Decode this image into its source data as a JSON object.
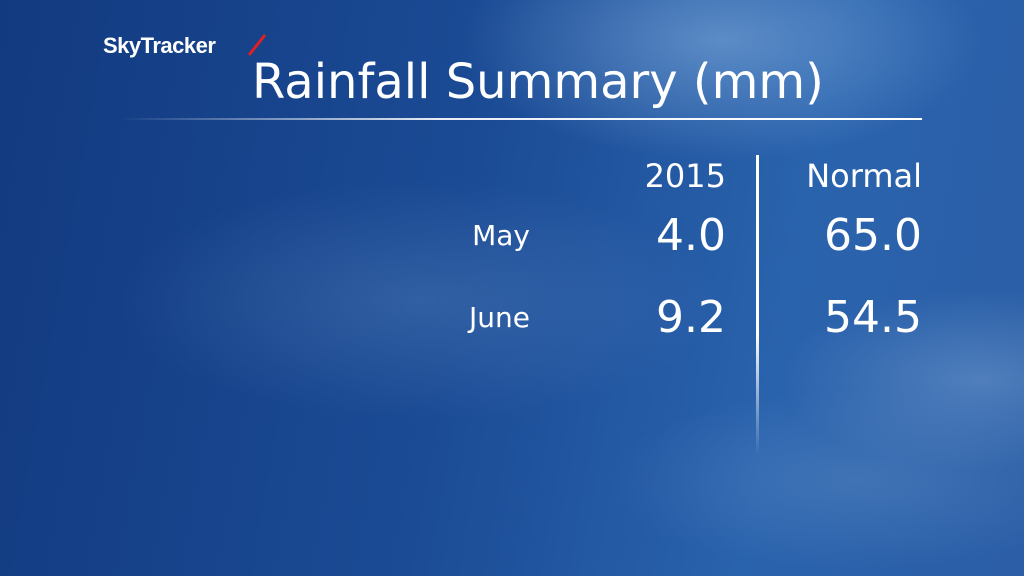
{
  "brand": "SkyTracker",
  "title": "Rainfall Summary (mm)",
  "table": {
    "header": [
      "2015",
      "Normal"
    ],
    "rows": [
      [
        "May",
        "4.0",
        "65.0"
      ],
      [
        "June",
        "9.2",
        "54.5"
      ]
    ]
  }
}
